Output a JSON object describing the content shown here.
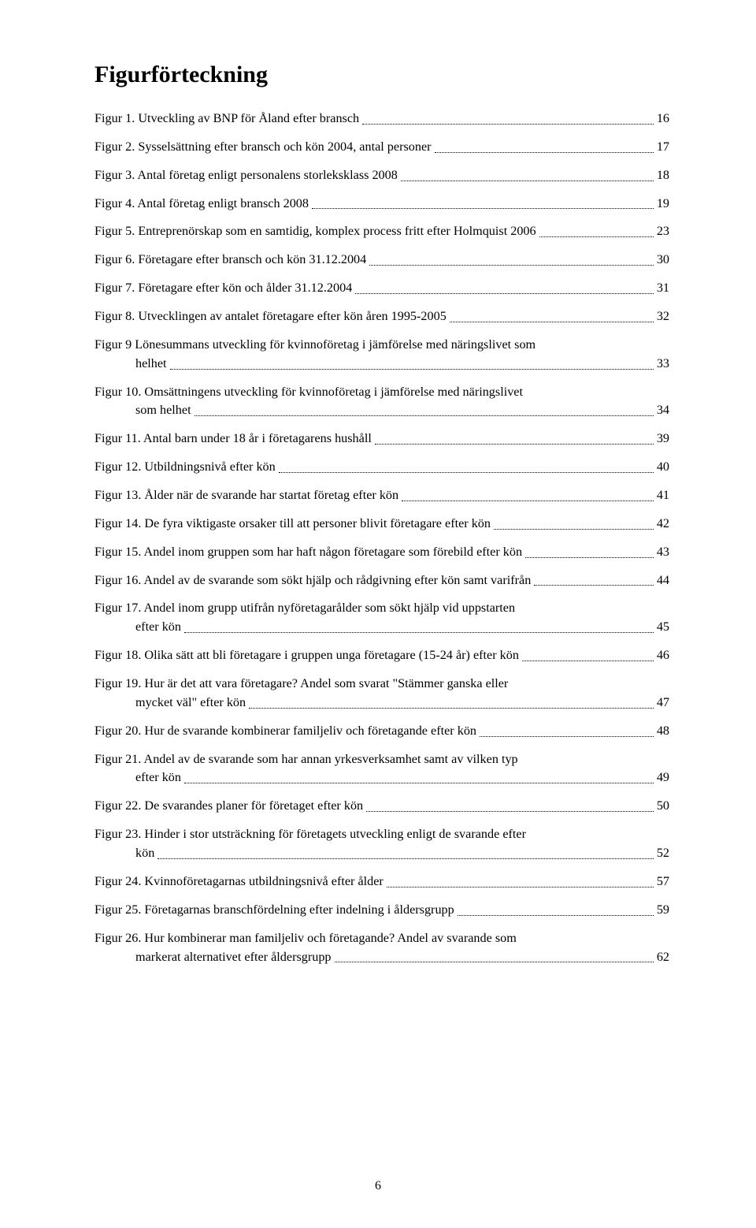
{
  "title": "Figurförteckning",
  "page_number": "6",
  "entries": [
    {
      "text": "Figur 1. Utveckling av BNP för Åland efter bransch",
      "page": "16"
    },
    {
      "text": "Figur 2. Sysselsättning efter bransch och kön 2004, antal personer",
      "page": "17"
    },
    {
      "text": "Figur 3. Antal företag enligt personalens storleksklass 2008",
      "page": "18"
    },
    {
      "text": "Figur 4. Antal företag enligt bransch 2008",
      "page": "19"
    },
    {
      "text": "Figur 5. Entreprenörskap som en samtidig, komplex process fritt efter Holmquist 2006",
      "page": "23"
    },
    {
      "text": "Figur 6. Företagare efter bransch och kön 31.12.2004",
      "page": "30"
    },
    {
      "text": "Figur 7. Företagare efter kön och ålder 31.12.2004",
      "page": "31"
    },
    {
      "text": "Figur 8. Utvecklingen av antalet företagare efter kön åren 1995-2005",
      "page": "32"
    },
    {
      "line1": "Figur 9 Lönesummans utveckling för kvinnoföretag i jämförelse med näringslivet som",
      "line2": "helhet",
      "page": "33"
    },
    {
      "line1": "Figur 10. Omsättningens utveckling för kvinnoföretag i jämförelse med näringslivet",
      "line2": "som helhet",
      "page": "34"
    },
    {
      "text": "Figur 11. Antal barn under 18 år i företagarens hushåll",
      "page": "39"
    },
    {
      "text": "Figur 12. Utbildningsnivå efter kön",
      "page": "40"
    },
    {
      "text": "Figur 13. Ålder när de svarande har startat företag efter kön",
      "page": "41"
    },
    {
      "text": "Figur 14. De fyra viktigaste orsaker till att personer blivit företagare efter kön",
      "page": "42"
    },
    {
      "text": "Figur 15. Andel inom gruppen som har haft någon företagare som förebild efter kön",
      "page": "43"
    },
    {
      "text": "Figur 16. Andel av de svarande som sökt hjälp och rådgivning efter kön samt varifrån",
      "page": "44"
    },
    {
      "line1": "Figur 17. Andel inom grupp utifrån nyföretagarålder som sökt hjälp vid uppstarten",
      "line2": "efter kön",
      "page": "45"
    },
    {
      "text": "Figur 18. Olika sätt att bli företagare i gruppen unga företagare (15-24 år) efter kön",
      "page": "46"
    },
    {
      "line1": "Figur 19. Hur är det att vara företagare? Andel som svarat \"Stämmer ganska eller",
      "line2": "mycket väl\" efter kön",
      "page": "47"
    },
    {
      "text": "Figur 20. Hur de svarande kombinerar familjeliv och företagande efter kön",
      "page": "48"
    },
    {
      "line1": "Figur 21. Andel av de svarande som har annan yrkesverksamhet samt av vilken typ",
      "line2": "efter kön",
      "page": "49"
    },
    {
      "text": "Figur 22. De svarandes planer för företaget efter kön",
      "page": "50"
    },
    {
      "line1": "Figur 23. Hinder i stor utsträckning för företagets utveckling enligt de svarande efter",
      "line2": "kön",
      "page": "52"
    },
    {
      "text": "Figur 24. Kvinnoföretagarnas utbildningsnivå efter ålder",
      "page": "57"
    },
    {
      "text": "Figur 25. Företagarnas branschfördelning efter indelning i åldersgrupp",
      "page": "59"
    },
    {
      "line1": "Figur 26. Hur kombinerar man familjeliv och företagande? Andel av svarande som",
      "line2": "markerat alternativet efter åldersgrupp",
      "page": "62"
    }
  ]
}
